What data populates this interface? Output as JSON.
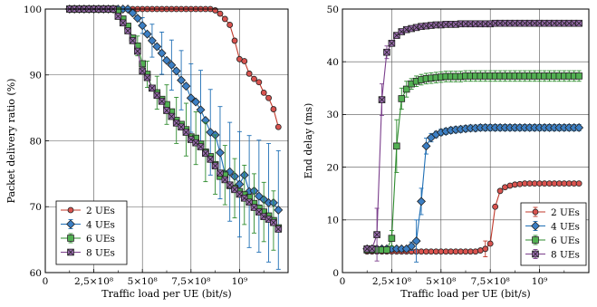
{
  "chart_data": [
    {
      "type": "line",
      "xlabel": "Traffic load per UE (bit/s)",
      "ylabel": "Packet delivery ratio (%)",
      "xlim": [
        0,
        1250000000
      ],
      "ylim": [
        60,
        100
      ],
      "grid": true,
      "legend_position": "lower-left",
      "x_ticks": [
        {
          "value": 0,
          "label": "0"
        },
        {
          "value": 250000000,
          "label": "2,5×10⁸"
        },
        {
          "value": 500000000,
          "label": "5×10⁸"
        },
        {
          "value": 750000000,
          "label": "7,5×10⁸"
        },
        {
          "value": 1000000000,
          "label": "10⁹"
        }
      ],
      "y_ticks": [
        {
          "value": 60,
          "label": "60"
        },
        {
          "value": 70,
          "label": "70"
        },
        {
          "value": 80,
          "label": "80"
        },
        {
          "value": 90,
          "label": "90"
        },
        {
          "value": 100,
          "label": "100"
        }
      ],
      "x": [
        125000000,
        150000000,
        175000000,
        200000000,
        225000000,
        250000000,
        275000000,
        300000000,
        325000000,
        350000000,
        375000000,
        400000000,
        425000000,
        450000000,
        475000000,
        500000000,
        525000000,
        550000000,
        575000000,
        600000000,
        625000000,
        650000000,
        675000000,
        700000000,
        725000000,
        750000000,
        775000000,
        800000000,
        825000000,
        850000000,
        875000000,
        900000000,
        925000000,
        950000000,
        975000000,
        1000000000,
        1025000000,
        1050000000,
        1075000000,
        1100000000,
        1125000000,
        1150000000,
        1175000000,
        1200000000
      ],
      "series": [
        {
          "name": "2 UEs",
          "color": "#c0392b",
          "fill": "#d9534f",
          "marker": "circle",
          "error_stride": 2,
          "values": [
            100,
            100,
            100,
            100,
            100,
            100,
            100,
            100,
            100,
            100,
            100,
            100,
            100,
            100,
            100,
            100,
            100,
            100,
            100,
            100,
            100,
            100,
            100,
            100,
            100,
            100,
            100,
            100,
            100,
            100,
            99.8,
            99.3,
            98.5,
            97.6,
            95.2,
            92.4,
            92.1,
            90.2,
            89.4,
            88.9,
            87.3,
            86.5,
            84.8,
            82.1
          ],
          "errors": [
            0,
            0,
            0,
            0,
            0,
            0,
            0,
            0,
            0,
            0,
            0,
            0,
            0,
            0,
            0,
            0,
            0,
            0,
            0,
            0,
            0,
            0,
            0,
            0,
            0,
            0,
            0,
            0,
            0,
            0,
            0,
            0,
            0,
            0,
            0,
            0,
            0,
            0,
            0,
            0,
            0,
            0,
            0,
            0
          ]
        },
        {
          "name": "4 UEs",
          "color": "#1f6fb5",
          "fill": "#3c7fc4",
          "marker": "diamond",
          "error_stride": 2,
          "values": [
            100,
            100,
            100,
            100,
            100,
            100,
            100,
            100,
            100,
            100,
            100,
            100,
            100,
            99.4,
            98.6,
            97.5,
            96.2,
            95.2,
            94.3,
            93.3,
            92.2,
            91.5,
            90.6,
            89.2,
            88.3,
            86.5,
            85.9,
            84.7,
            83.1,
            81.3,
            80.9,
            78.2,
            75,
            75.3,
            74.6,
            73.4,
            74.8,
            72.3,
            72.4,
            71.6,
            71.1,
            70.6,
            70.6,
            69.5
          ],
          "errors": [
            0,
            0,
            0,
            0,
            0,
            0,
            0,
            0,
            0,
            0,
            0,
            0,
            0,
            0,
            0,
            1.2,
            0,
            2.5,
            0,
            3.2,
            0,
            3.8,
            0,
            4.5,
            0,
            5.2,
            0,
            6,
            0,
            6.5,
            0,
            7,
            0,
            7.5,
            0,
            8,
            0,
            8.5,
            0,
            8.5,
            0,
            9,
            0,
            9
          ]
        },
        {
          "name": "6 UEs",
          "color": "#2e8b2e",
          "fill": "#52b052",
          "marker": "square",
          "error_stride": 2,
          "values": [
            100,
            100,
            100,
            100,
            100,
            100,
            100,
            100,
            100,
            100,
            99.8,
            98.5,
            97.4,
            95.6,
            94.4,
            91.7,
            90.1,
            88,
            87.3,
            86.3,
            85.5,
            84.4,
            83.1,
            82.5,
            81.7,
            80.6,
            80.4,
            79.5,
            78.3,
            77.6,
            76.4,
            74.6,
            74.8,
            73.2,
            72.8,
            72.3,
            71.8,
            71.4,
            70.5,
            69.8,
            69.2,
            68.6,
            67.9,
            66.8
          ],
          "errors": [
            0,
            0,
            0,
            0,
            0,
            0,
            0,
            0,
            0,
            0,
            0,
            0,
            0,
            0,
            1.5,
            0,
            2,
            0,
            2.5,
            0,
            3,
            0,
            3.5,
            0,
            4,
            0,
            4,
            0,
            4.5,
            0,
            4.5,
            0,
            4.5,
            0,
            4.5,
            0,
            4.5,
            0,
            4.5,
            0,
            4.5,
            0,
            4.5,
            0
          ]
        },
        {
          "name": "8 UEs",
          "color": "#7b3f8c",
          "fill": "#9b6bb0",
          "marker": "xsquare",
          "error_stride": 2,
          "values": [
            100,
            100,
            100,
            100,
            100,
            100,
            100,
            100,
            100,
            100,
            98.9,
            97.9,
            96.7,
            95.2,
            93.6,
            90.6,
            89.6,
            88,
            86.9,
            86,
            84.6,
            83.7,
            82.7,
            82.1,
            81.3,
            80.2,
            79.7,
            79.1,
            78.1,
            77.2,
            76.2,
            75.1,
            74.1,
            73.3,
            72.6,
            71.9,
            71.3,
            70.7,
            69.9,
            69.2,
            68.5,
            68.1,
            67.6,
            66.6
          ],
          "errors": [
            0,
            0,
            0,
            0,
            0,
            0,
            0,
            0,
            0,
            0,
            0,
            0,
            0,
            0,
            0,
            0,
            0,
            0,
            0,
            0,
            0,
            0,
            0,
            0,
            0,
            0,
            0,
            0,
            0,
            0,
            0,
            0,
            0,
            0,
            0,
            0,
            0,
            0,
            0,
            0,
            0,
            0,
            0,
            0
          ]
        }
      ]
    },
    {
      "type": "line",
      "xlabel": "Traffic load per UE (bit/s)",
      "ylabel": "End delay (ms)",
      "xlim": [
        0,
        1250000000
      ],
      "ylim": [
        0,
        50
      ],
      "grid": true,
      "legend_position": "lower-right",
      "x_ticks": [
        {
          "value": 0,
          "label": "0"
        },
        {
          "value": 250000000,
          "label": "2,5×10⁸"
        },
        {
          "value": 500000000,
          "label": "5×10⁸"
        },
        {
          "value": 750000000,
          "label": "7,5×10⁸"
        },
        {
          "value": 1000000000,
          "label": "10⁹"
        }
      ],
      "y_ticks": [
        {
          "value": 0,
          "label": "0"
        },
        {
          "value": 10,
          "label": "10"
        },
        {
          "value": 20,
          "label": "20"
        },
        {
          "value": 30,
          "label": "30"
        },
        {
          "value": 40,
          "label": "40"
        },
        {
          "value": 50,
          "label": "50"
        }
      ],
      "x": [
        125000000,
        150000000,
        175000000,
        200000000,
        225000000,
        250000000,
        275000000,
        300000000,
        325000000,
        350000000,
        375000000,
        400000000,
        425000000,
        450000000,
        475000000,
        500000000,
        525000000,
        550000000,
        575000000,
        600000000,
        625000000,
        650000000,
        675000000,
        700000000,
        725000000,
        750000000,
        775000000,
        800000000,
        825000000,
        850000000,
        875000000,
        900000000,
        925000000,
        950000000,
        975000000,
        1000000000,
        1025000000,
        1050000000,
        1075000000,
        1100000000,
        1125000000,
        1150000000,
        1175000000,
        1200000000
      ],
      "series": [
        {
          "name": "2 UEs",
          "color": "#c0392b",
          "fill": "#d9534f",
          "marker": "circle",
          "error_stride": 1,
          "values": [
            4,
            4,
            4,
            4,
            4,
            4,
            4,
            4,
            4,
            4,
            4,
            4,
            4,
            4,
            4,
            4,
            4,
            4,
            4,
            4,
            4,
            4,
            4,
            4.2,
            4.5,
            5.5,
            12.5,
            15.5,
            16.2,
            16.5,
            16.7,
            16.8,
            16.9,
            16.9,
            16.9,
            16.9,
            16.9,
            16.9,
            16.9,
            16.9,
            16.9,
            16.9,
            16.9,
            16.9
          ],
          "errors": [
            0,
            0,
            0,
            0,
            0,
            0,
            0,
            0,
            0,
            0,
            0,
            0,
            0,
            0,
            0,
            0,
            0,
            0,
            0,
            0,
            0,
            0,
            0,
            0,
            1.5,
            0,
            0,
            0,
            0,
            0,
            0,
            0,
            0,
            0,
            0,
            0,
            0,
            0,
            0,
            0,
            0,
            0,
            0,
            0
          ]
        },
        {
          "name": "4 UEs",
          "color": "#1f6fb5",
          "fill": "#3c7fc4",
          "marker": "diamond",
          "error_stride": 1,
          "values": [
            4.5,
            4.5,
            4.5,
            4.5,
            4.5,
            4.5,
            4.5,
            4.5,
            4.5,
            5,
            6,
            13.5,
            24,
            25.6,
            26.2,
            26.6,
            26.8,
            27,
            27.1,
            27.2,
            27.3,
            27.4,
            27.4,
            27.5,
            27.5,
            27.5,
            27.5,
            27.5,
            27.5,
            27.5,
            27.5,
            27.5,
            27.5,
            27.5,
            27.5,
            27.5,
            27.5,
            27.5,
            27.5,
            27.5,
            27.5,
            27.5,
            27.5,
            27.5
          ],
          "errors": [
            0,
            0,
            0,
            0,
            0,
            0,
            0,
            0,
            0,
            0.8,
            4,
            2.5,
            1.5,
            0.8,
            0.6,
            0.6,
            0.6,
            0.6,
            0.6,
            0.6,
            0.6,
            0.6,
            0.6,
            0.6,
            0.6,
            0.6,
            0.6,
            0.6,
            0.6,
            0.6,
            0.6,
            0.6,
            0.6,
            0.6,
            0.6,
            0.6,
            0.6,
            0.6,
            0.6,
            0.6,
            0.6,
            0.6,
            0.6,
            0.6
          ]
        },
        {
          "name": "6 UEs",
          "color": "#2e8b2e",
          "fill": "#52b052",
          "marker": "square",
          "error_stride": 1,
          "values": [
            4.3,
            4.3,
            4.3,
            4.3,
            4.3,
            6.5,
            24,
            33,
            34.8,
            35.8,
            36.3,
            36.6,
            36.8,
            36.9,
            37,
            37.1,
            37.2,
            37.2,
            37.2,
            37.2,
            37.3,
            37.3,
            37.3,
            37.3,
            37.3,
            37.3,
            37.3,
            37.3,
            37.3,
            37.3,
            37.3,
            37.3,
            37.3,
            37.3,
            37.3,
            37.3,
            37.3,
            37.3,
            37.3,
            37.3,
            37.3,
            37.3,
            37.3,
            37.3
          ],
          "errors": [
            0,
            0,
            0,
            0,
            0,
            1.5,
            5,
            2,
            1.5,
            1,
            1,
            1,
            1,
            1,
            1,
            1,
            1,
            1,
            1,
            1,
            1,
            1,
            1,
            1,
            1,
            1,
            1,
            1,
            1,
            1,
            1,
            1,
            1,
            1,
            1,
            1,
            1,
            1,
            1,
            1,
            1,
            1,
            1,
            1
          ]
        },
        {
          "name": "8 UEs",
          "color": "#7b3f8c",
          "fill": "#9b6bb0",
          "marker": "xsquare",
          "error_stride": 1,
          "values": [
            4.5,
            4.5,
            7.2,
            32.8,
            41.8,
            43.5,
            45,
            45.7,
            46.1,
            46.3,
            46.5,
            46.7,
            46.8,
            46.9,
            47,
            47,
            47.1,
            47.1,
            47.1,
            47.2,
            47.2,
            47.2,
            47.2,
            47.2,
            47.2,
            47.2,
            47.3,
            47.3,
            47.3,
            47.3,
            47.3,
            47.3,
            47.3,
            47.3,
            47.3,
            47.3,
            47.3,
            47.3,
            47.3,
            47.3,
            47.3,
            47.3,
            47.3,
            47.3
          ],
          "errors": [
            0,
            0,
            5,
            3,
            1.2,
            0.5,
            0.5,
            0.4,
            0.4,
            0.4,
            0.4,
            0.4,
            0.4,
            0.4,
            0.4,
            0.4,
            0.4,
            0.4,
            0.4,
            0.4,
            0.4,
            0.4,
            0.4,
            0.4,
            0.4,
            0.4,
            0.4,
            0.4,
            0.4,
            0.4,
            0.4,
            0.4,
            0.4,
            0.4,
            0.4,
            0.4,
            0.4,
            0.4,
            0.4,
            0.4,
            0.4,
            0.4,
            0.4,
            0.4
          ]
        }
      ]
    }
  ]
}
